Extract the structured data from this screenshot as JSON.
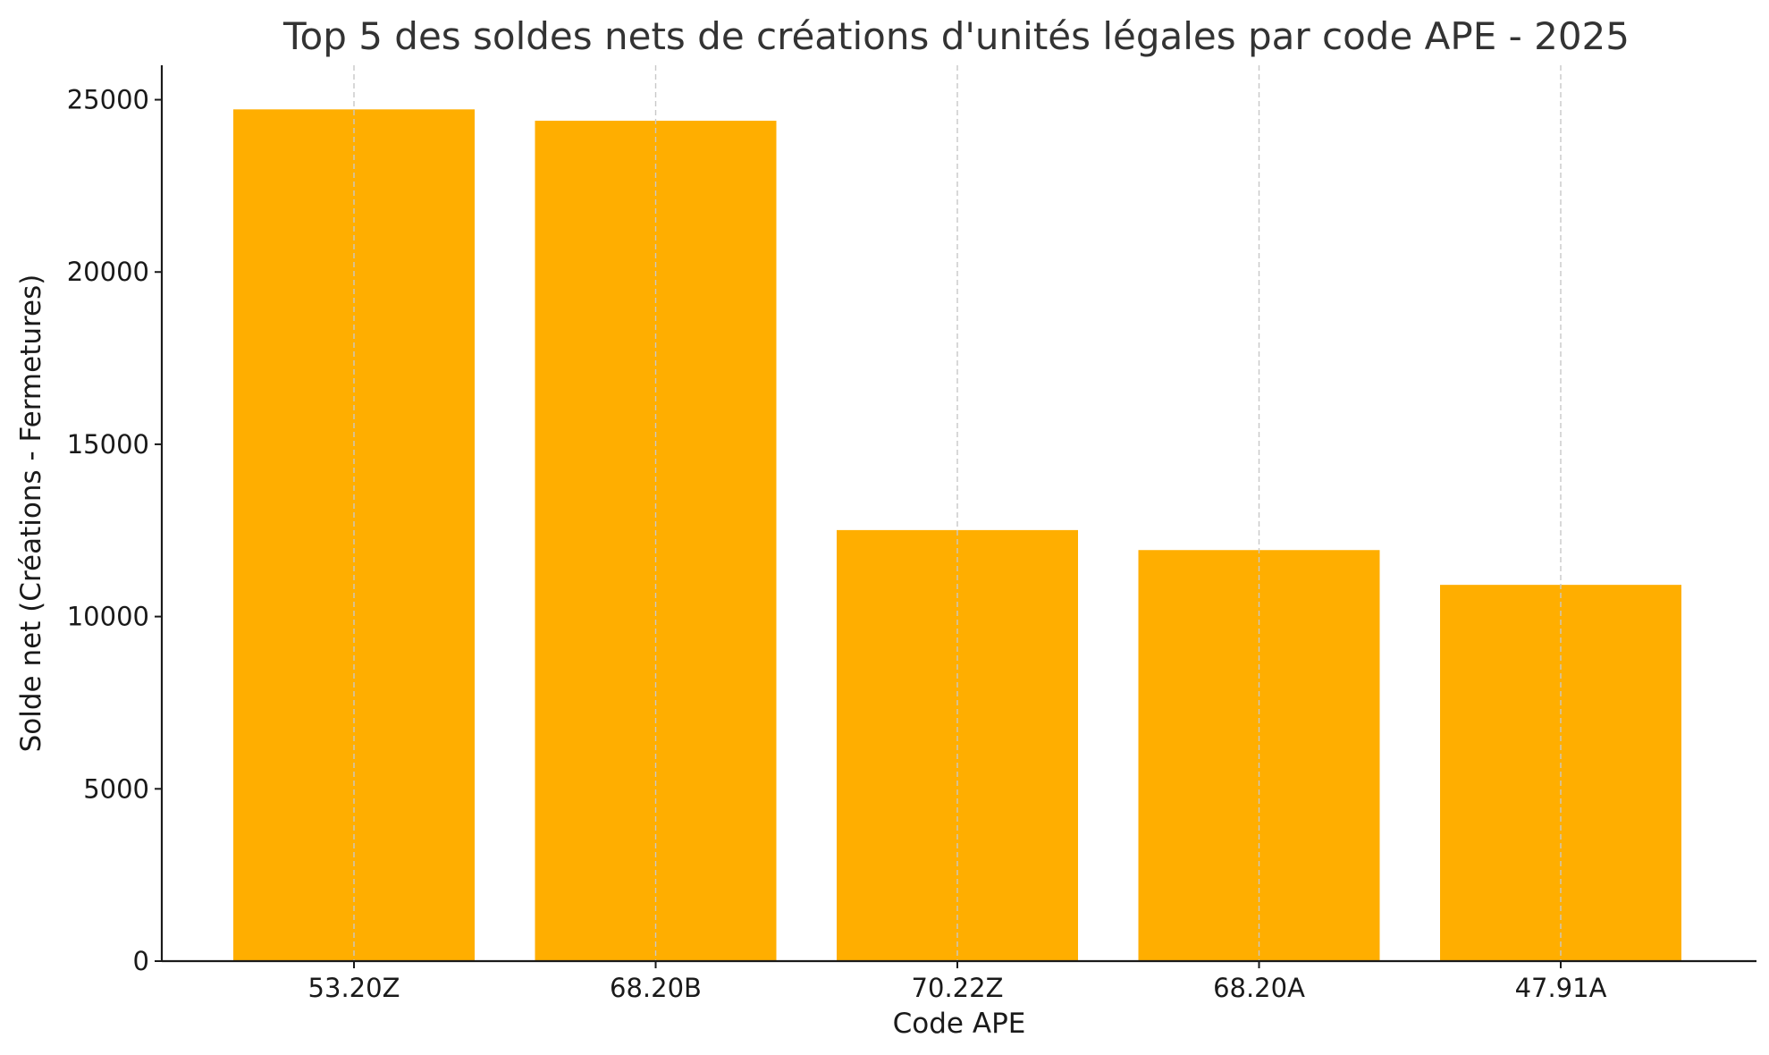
{
  "chart_data": {
    "type": "bar",
    "title": "Top 5 des soldes nets de créations d'unités légales par code APE - 2025",
    "xlabel": "Code APE",
    "ylabel": "Solde net (Créations - Fermetures)",
    "categories": [
      "53.20Z",
      "68.20B",
      "70.22Z",
      "68.20A",
      "47.91A"
    ],
    "values": [
      24720,
      24390,
      12510,
      11930,
      10920
    ],
    "ylim": [
      0,
      26000
    ],
    "yticks": [
      0,
      5000,
      10000,
      15000,
      20000,
      25000
    ],
    "bar_color": "#FFAE00",
    "grid": {
      "x": true,
      "y": false,
      "style": "dashed"
    },
    "legend": "none"
  }
}
